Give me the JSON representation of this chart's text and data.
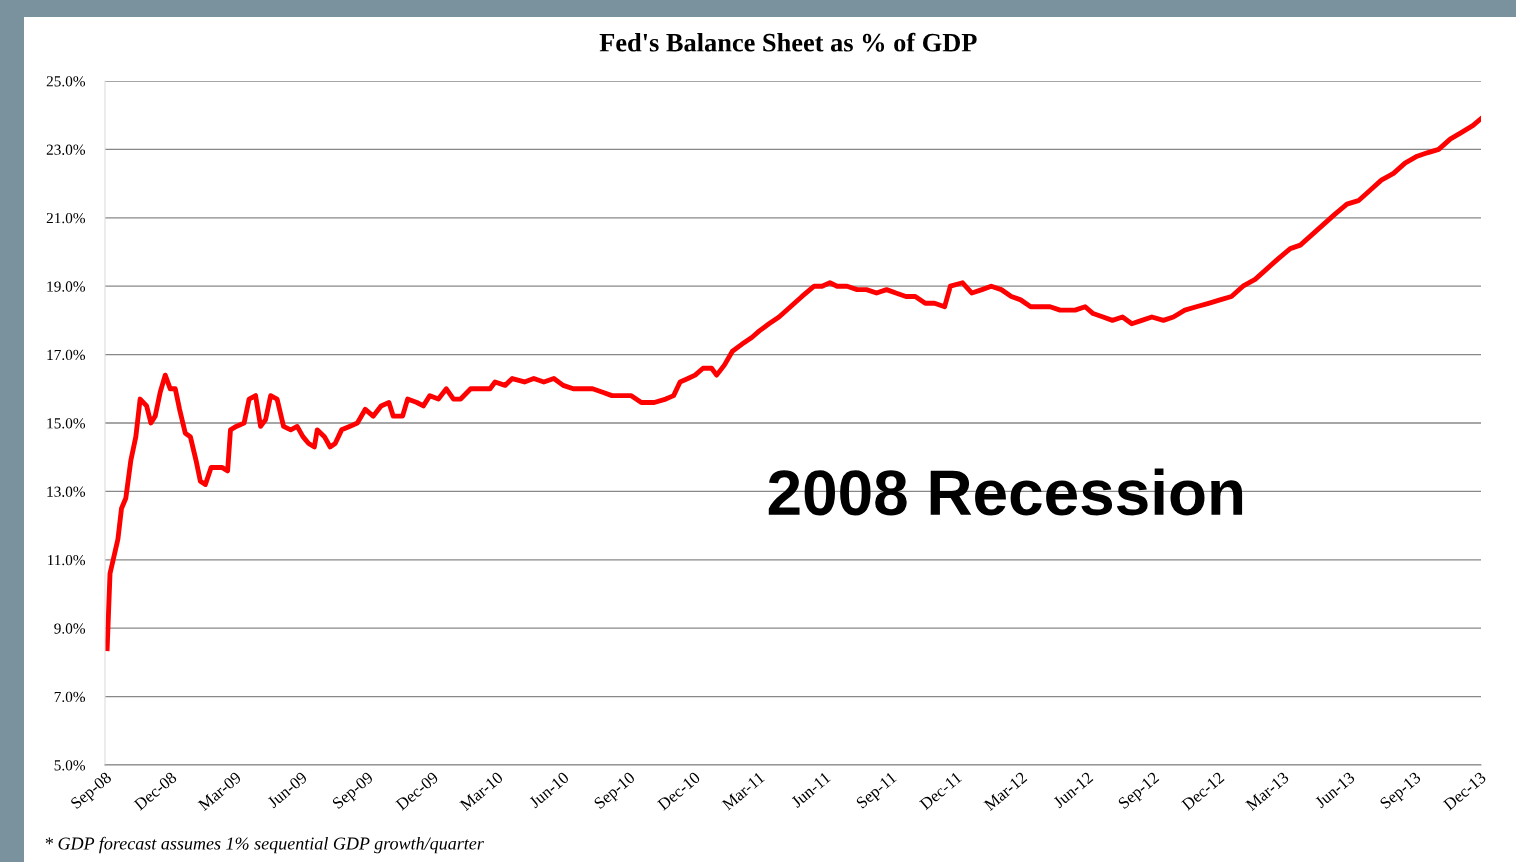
{
  "chart_data": {
    "type": "line",
    "title": "Fed's Balance Sheet as % of GDP",
    "annotations": [
      "2008 Recession",
      "* GDP forecast assumes 1% sequential GDP growth/quarter"
    ],
    "x": [
      "2008-09-04",
      "2008-09-08",
      "2008-09-19",
      "2008-09-24",
      "2008-09-30",
      "2008-10-07",
      "2008-10-14",
      "2008-10-20",
      "2008-10-29",
      "2008-11-04",
      "2008-11-10",
      "2008-11-17",
      "2008-11-24",
      "2008-12-01",
      "2008-12-08",
      "2008-12-14",
      "2008-12-22",
      "2008-12-29",
      "2009-01-06",
      "2009-01-12",
      "2009-01-19",
      "2009-01-27",
      "2009-02-04",
      "2009-02-11",
      "2009-02-19",
      "2009-02-23",
      "2009-03-03",
      "2009-03-14",
      "2009-03-21",
      "2009-03-30",
      "2009-04-06",
      "2009-04-13",
      "2009-04-20",
      "2009-04-29",
      "2009-05-08",
      "2009-05-18",
      "2009-05-27",
      "2009-06-04",
      "2009-06-12",
      "2009-06-20",
      "2009-06-24",
      "2009-07-04",
      "2009-07-12",
      "2009-07-19",
      "2009-07-28",
      "2009-08-08",
      "2009-08-19",
      "2009-08-30",
      "2009-09-10",
      "2009-09-21",
      "2009-10-02",
      "2009-10-08",
      "2009-10-21",
      "2009-10-28",
      "2009-11-10",
      "2009-11-19",
      "2009-11-28",
      "2009-12-10",
      "2009-12-21",
      "2009-12-31",
      "2010-01-10",
      "2010-01-24",
      "2010-02-06",
      "2010-02-20",
      "2010-02-27",
      "2010-03-13",
      "2010-03-23",
      "2010-04-09",
      "2010-04-22",
      "2010-05-06",
      "2010-05-20",
      "2010-06-02",
      "2010-06-16",
      "2010-06-30",
      "2010-07-13",
      "2010-07-27",
      "2010-08-09",
      "2010-08-23",
      "2010-09-05",
      "2010-09-19",
      "2010-10-07",
      "2010-10-23",
      "2010-11-03",
      "2010-11-12",
      "2010-11-23",
      "2010-12-03",
      "2010-12-14",
      "2010-12-26",
      "2011-01-02",
      "2011-01-13",
      "2011-01-24",
      "2011-02-06",
      "2011-02-20",
      "2011-03-03",
      "2011-03-16",
      "2011-03-30",
      "2011-04-15",
      "2011-05-01",
      "2011-05-18",
      "2011-05-29",
      "2011-06-09",
      "2011-06-19",
      "2011-07-03",
      "2011-07-17",
      "2011-07-30",
      "2011-08-13",
      "2011-08-27",
      "2011-09-09",
      "2011-09-23",
      "2011-10-06",
      "2011-10-20",
      "2011-11-02",
      "2011-11-16",
      "2011-11-24",
      "2011-12-11",
      "2011-12-24",
      "2012-01-07",
      "2012-01-20",
      "2012-02-03",
      "2012-02-17",
      "2012-03-01",
      "2012-03-15",
      "2012-03-29",
      "2012-04-11",
      "2012-04-25",
      "2012-05-08",
      "2012-05-16",
      "2012-05-30",
      "2012-06-10",
      "2012-06-24",
      "2012-07-07",
      "2012-07-21",
      "2012-08-03",
      "2012-08-17",
      "2012-08-31",
      "2012-09-16",
      "2012-09-30",
      "2012-10-16",
      "2012-11-01",
      "2012-11-18",
      "2012-12-04",
      "2012-12-20",
      "2013-01-05",
      "2013-01-22",
      "2013-02-07",
      "2013-02-23",
      "2013-03-12",
      "2013-03-26",
      "2013-04-11",
      "2013-04-27",
      "2013-05-13",
      "2013-05-30",
      "2013-06-15",
      "2013-07-01",
      "2013-07-17",
      "2013-08-03",
      "2013-08-19",
      "2013-09-05",
      "2013-09-19",
      "2013-10-05",
      "2013-10-21",
      "2013-11-06",
      "2013-11-22",
      "2013-12-03"
    ],
    "series": [
      {
        "color": "#ff0000",
        "values": [
          8.4,
          10.6,
          11.6,
          12.5,
          12.8,
          13.9,
          14.6,
          15.7,
          15.5,
          15.0,
          15.2,
          15.9,
          16.4,
          16.0,
          16.0,
          15.4,
          14.7,
          14.6,
          13.9,
          13.3,
          13.2,
          13.7,
          13.7,
          13.7,
          13.6,
          14.8,
          14.9,
          15.0,
          15.7,
          15.8,
          14.9,
          15.1,
          15.8,
          15.7,
          14.9,
          14.8,
          14.9,
          14.6,
          14.4,
          14.3,
          14.8,
          14.6,
          14.3,
          14.4,
          14.8,
          14.9,
          15.0,
          15.4,
          15.2,
          15.5,
          15.6,
          15.2,
          15.2,
          15.7,
          15.6,
          15.5,
          15.8,
          15.7,
          16.0,
          15.7,
          15.7,
          16.0,
          16.0,
          16.0,
          16.2,
          16.1,
          16.3,
          16.2,
          16.3,
          16.2,
          16.3,
          16.1,
          16.0,
          16.0,
          16.0,
          15.9,
          15.8,
          15.8,
          15.8,
          15.6,
          15.6,
          15.7,
          15.8,
          16.2,
          16.3,
          16.4,
          16.6,
          16.6,
          16.4,
          16.7,
          17.1,
          17.3,
          17.5,
          17.7,
          17.9,
          18.1,
          18.4,
          18.7,
          19.0,
          19.0,
          19.1,
          19.0,
          19.0,
          18.9,
          18.9,
          18.8,
          18.9,
          18.8,
          18.7,
          18.7,
          18.5,
          18.5,
          18.4,
          19.0,
          19.1,
          18.8,
          18.9,
          19.0,
          18.9,
          18.7,
          18.6,
          18.4,
          18.4,
          18.4,
          18.3,
          18.3,
          18.3,
          18.4,
          18.2,
          18.1,
          18.0,
          18.1,
          17.9,
          18.0,
          18.1,
          18.0,
          18.1,
          18.3,
          18.4,
          18.5,
          18.6,
          18.7,
          19.0,
          19.2,
          19.5,
          19.8,
          20.1,
          20.2,
          20.5,
          20.8,
          21.1,
          21.4,
          21.5,
          21.8,
          22.1,
          22.3,
          22.6,
          22.8,
          22.9,
          23.0,
          23.3,
          23.5,
          23.7,
          23.9
        ]
      }
    ],
    "xlim": [
      "2008-09-01",
      "2013-12-03"
    ],
    "xticks": [
      {
        "value": "2008-09-01",
        "label": "Sep-08"
      },
      {
        "value": "2008-12-01",
        "label": "Dec-08"
      },
      {
        "value": "2009-03-01",
        "label": "Mar-09"
      },
      {
        "value": "2009-06-01",
        "label": "Jun-09"
      },
      {
        "value": "2009-09-01",
        "label": "Sep-09"
      },
      {
        "value": "2009-12-01",
        "label": "Dec-09"
      },
      {
        "value": "2010-03-01",
        "label": "Mar-10"
      },
      {
        "value": "2010-06-01",
        "label": "Jun-10"
      },
      {
        "value": "2010-09-01",
        "label": "Sep-10"
      },
      {
        "value": "2010-12-01",
        "label": "Dec-10"
      },
      {
        "value": "2011-03-01",
        "label": "Mar-11"
      },
      {
        "value": "2011-06-01",
        "label": "Jun-11"
      },
      {
        "value": "2011-09-01",
        "label": "Sep-11"
      },
      {
        "value": "2011-12-01",
        "label": "Dec-11"
      },
      {
        "value": "2012-03-01",
        "label": "Mar-12"
      },
      {
        "value": "2012-06-01",
        "label": "Jun-12"
      },
      {
        "value": "2012-09-01",
        "label": "Sep-12"
      },
      {
        "value": "2012-12-01",
        "label": "Dec-12"
      },
      {
        "value": "2013-03-01",
        "label": "Mar-13"
      },
      {
        "value": "2013-06-01",
        "label": "Jun-13"
      },
      {
        "value": "2013-09-01",
        "label": "Sep-13"
      },
      {
        "value": "2013-12-01",
        "label": "Dec-13"
      }
    ],
    "ylim": [
      5,
      25
    ],
    "yticks": [
      {
        "value": 5,
        "label": "5.0%"
      },
      {
        "value": 7,
        "label": "7.0%"
      },
      {
        "value": 9,
        "label": "9.0%"
      },
      {
        "value": 11,
        "label": "11.0%"
      },
      {
        "value": 13,
        "label": "13.0%"
      },
      {
        "value": 15,
        "label": "15.0%"
      },
      {
        "value": 17,
        "label": "17.0%"
      },
      {
        "value": 19,
        "label": "19.0%"
      },
      {
        "value": 21,
        "label": "21.0%"
      },
      {
        "value": 23,
        "label": "23.0%"
      },
      {
        "value": 25,
        "label": "25.0%"
      }
    ],
    "grid": "y",
    "marker": "none",
    "line_style": "solid"
  }
}
